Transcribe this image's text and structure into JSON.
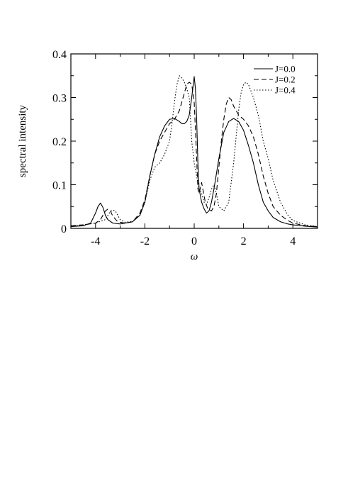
{
  "chart_data": {
    "type": "line",
    "xlabel": "ω",
    "ylabel": "spectral intensity",
    "xlim": [
      -5,
      5
    ],
    "ylim": [
      0,
      0.4
    ],
    "xticks": [
      -4,
      -2,
      0,
      2,
      4
    ],
    "xtick_labels": [
      "-4",
      "-2",
      "0",
      "2",
      "4"
    ],
    "yticks": [
      0,
      0.1,
      0.2,
      0.3,
      0.4
    ],
    "ytick_labels": [
      "0",
      "0.1",
      "0.2",
      "0.3",
      "0.4"
    ],
    "legend_position": "top-right",
    "series": [
      {
        "name": "J=0.0",
        "dash": "solid",
        "x": [
          -5.0,
          -4.5,
          -4.2,
          -4.0,
          -3.9,
          -3.8,
          -3.7,
          -3.6,
          -3.5,
          -3.3,
          -3.0,
          -2.5,
          -2.2,
          -2.0,
          -1.8,
          -1.6,
          -1.4,
          -1.2,
          -1.0,
          -0.8,
          -0.6,
          -0.5,
          -0.4,
          -0.3,
          -0.2,
          -0.1,
          0.0,
          0.05,
          0.1,
          0.15,
          0.2,
          0.3,
          0.4,
          0.5,
          0.6,
          0.7,
          0.8,
          1.0,
          1.2,
          1.4,
          1.6,
          1.8,
          2.0,
          2.2,
          2.4,
          2.6,
          2.8,
          3.0,
          3.2,
          3.5,
          3.8,
          4.0,
          4.5,
          5.0
        ],
        "y": [
          0.004,
          0.006,
          0.012,
          0.035,
          0.05,
          0.058,
          0.048,
          0.03,
          0.02,
          0.012,
          0.01,
          0.015,
          0.03,
          0.06,
          0.12,
          0.17,
          0.21,
          0.235,
          0.25,
          0.252,
          0.245,
          0.24,
          0.24,
          0.245,
          0.26,
          0.3,
          0.348,
          0.32,
          0.25,
          0.15,
          0.09,
          0.06,
          0.045,
          0.035,
          0.04,
          0.06,
          0.09,
          0.16,
          0.22,
          0.245,
          0.252,
          0.245,
          0.225,
          0.19,
          0.15,
          0.1,
          0.06,
          0.04,
          0.025,
          0.015,
          0.01,
          0.008,
          0.005,
          0.003
        ]
      },
      {
        "name": "J=0.2",
        "dash": "dashed",
        "x": [
          -5.0,
          -4.5,
          -4.0,
          -3.8,
          -3.7,
          -3.6,
          -3.5,
          -3.4,
          -3.3,
          -3.1,
          -2.8,
          -2.5,
          -2.2,
          -2.0,
          -1.8,
          -1.6,
          -1.4,
          -1.2,
          -1.0,
          -0.8,
          -0.6,
          -0.4,
          -0.3,
          -0.2,
          -0.1,
          0.0,
          0.1,
          0.15,
          0.2,
          0.3,
          0.35,
          0.45,
          0.55,
          0.7,
          0.8,
          0.9,
          1.0,
          1.1,
          1.2,
          1.3,
          1.4,
          1.5,
          1.6,
          1.8,
          2.0,
          2.2,
          2.4,
          2.6,
          2.8,
          3.0,
          3.2,
          3.5,
          3.8,
          4.0,
          4.5,
          5.0
        ],
        "y": [
          0.006,
          0.008,
          0.012,
          0.02,
          0.03,
          0.04,
          0.044,
          0.04,
          0.028,
          0.015,
          0.012,
          0.015,
          0.035,
          0.065,
          0.12,
          0.17,
          0.2,
          0.22,
          0.24,
          0.25,
          0.27,
          0.31,
          0.33,
          0.335,
          0.33,
          0.29,
          0.16,
          0.09,
          0.08,
          0.105,
          0.09,
          0.06,
          0.045,
          0.04,
          0.05,
          0.08,
          0.14,
          0.2,
          0.25,
          0.285,
          0.3,
          0.295,
          0.28,
          0.26,
          0.25,
          0.235,
          0.21,
          0.17,
          0.12,
          0.08,
          0.05,
          0.03,
          0.018,
          0.012,
          0.006,
          0.004
        ]
      },
      {
        "name": "J=0.4",
        "dash": "dotted",
        "x": [
          -5.0,
          -4.5,
          -4.0,
          -3.6,
          -3.5,
          -3.4,
          -3.3,
          -3.2,
          -3.1,
          -3.0,
          -2.8,
          -2.5,
          -2.2,
          -2.0,
          -1.8,
          -1.6,
          -1.4,
          -1.2,
          -1.0,
          -0.9,
          -0.8,
          -0.7,
          -0.6,
          -0.5,
          -0.4,
          -0.3,
          -0.2,
          -0.1,
          0.0,
          0.1,
          0.2,
          0.3,
          0.4,
          0.5,
          0.6,
          0.7,
          0.8,
          0.9,
          1.0,
          1.2,
          1.4,
          1.6,
          1.8,
          1.9,
          2.0,
          2.1,
          2.2,
          2.4,
          2.6,
          2.8,
          3.0,
          3.2,
          3.5,
          3.8,
          4.0,
          4.5,
          5.0
        ],
        "y": [
          0.006,
          0.008,
          0.012,
          0.02,
          0.03,
          0.038,
          0.042,
          0.04,
          0.03,
          0.02,
          0.014,
          0.016,
          0.03,
          0.06,
          0.11,
          0.14,
          0.15,
          0.17,
          0.2,
          0.24,
          0.29,
          0.33,
          0.35,
          0.345,
          0.335,
          0.32,
          0.3,
          0.2,
          0.15,
          0.12,
          0.09,
          0.08,
          0.06,
          0.055,
          0.07,
          0.09,
          0.1,
          0.08,
          0.05,
          0.04,
          0.06,
          0.15,
          0.27,
          0.31,
          0.33,
          0.335,
          0.33,
          0.3,
          0.26,
          0.2,
          0.16,
          0.11,
          0.06,
          0.03,
          0.018,
          0.008,
          0.004
        ]
      }
    ]
  }
}
